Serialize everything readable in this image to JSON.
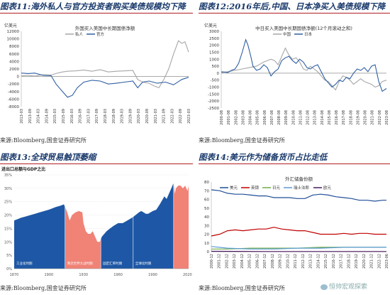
{
  "figures": [
    {
      "fig_label": "图表11:",
      "fig_title": "海外私人与官方投资者购买美债规模均下降",
      "source": "来源:Bloomberg,国金证券研究所"
    },
    {
      "fig_label": "图表12:",
      "fig_title": "2016年后,中国、日本净买入美债规模下降",
      "source": "来源:Bloomberg,国金证券研究所"
    },
    {
      "fig_label": "图表13:",
      "fig_title": "全球贸易触顶萎缩",
      "source": "来源:Bloomberg,国金证券研究所"
    },
    {
      "fig_label": "图表14:",
      "fig_title": "美元作为储备货币占比走低",
      "source": "来源:Bloomberg,国金证券研究所"
    }
  ],
  "watermark": "恒帅宏观探索",
  "chart_data": [
    {
      "type": "line",
      "unit": "亿美元",
      "title": "外国买入美国中长期国债净额",
      "ylim": [
        -8000,
        12000
      ],
      "yticks": [
        12000,
        10000,
        8000,
        6000,
        4000,
        2000,
        0,
        -2000,
        -4000,
        -6000,
        -8000
      ],
      "xlim": [
        2013.17,
        2023.42
      ],
      "xticks": [
        "2013-03",
        "2013-09",
        "2014-03",
        "2014-09",
        "2015-03",
        "2015-09",
        "2016-03",
        "2016-09",
        "2017-03",
        "2017-09",
        "2018-03",
        "2018-09",
        "2019-03",
        "2019-09",
        "2020-03",
        "2020-09",
        "2021-03",
        "2021-09",
        "2022-03",
        "2022-09",
        "2023-03"
      ],
      "series": [
        {
          "name": "私人",
          "color": "#a6a6a6",
          "x": [
            2013.17,
            2013.6,
            2014.0,
            2014.5,
            2015.0,
            2015.3,
            2015.7,
            2016.0,
            2016.5,
            2017.0,
            2017.5,
            2018.0,
            2018.5,
            2019.0,
            2019.5,
            2020.0,
            2020.3,
            2020.6,
            2021.0,
            2021.3,
            2021.6,
            2021.9,
            2022.2,
            2022.5,
            2022.8,
            2023.0,
            2023.2,
            2023.42
          ],
          "y": [
            200,
            300,
            100,
            500,
            400,
            800,
            1200,
            1400,
            1500,
            1700,
            1400,
            1800,
            1200,
            1400,
            1500,
            1600,
            -800,
            -1500,
            -1800,
            -2500,
            -3000,
            -800,
            2000,
            6000,
            9500,
            8800,
            9200,
            6500
          ]
        },
        {
          "name": "官方",
          "color": "#2e5fa3",
          "x": [
            2013.17,
            2013.6,
            2014.0,
            2014.5,
            2015.0,
            2015.3,
            2015.6,
            2016.0,
            2016.3,
            2016.6,
            2017.0,
            2017.5,
            2018.0,
            2018.5,
            2019.0,
            2019.5,
            2020.0,
            2020.3,
            2020.6,
            2021.0,
            2021.5,
            2022.0,
            2022.5,
            2023.0,
            2023.42
          ],
          "y": [
            900,
            800,
            900,
            300,
            200,
            -2000,
            -3500,
            -5500,
            -5000,
            -3000,
            -1500,
            -1000,
            -1200,
            -2000,
            -1800,
            -1500,
            -1200,
            -3000,
            -1500,
            -1200,
            -1800,
            -1500,
            -2200,
            -800,
            -200
          ]
        }
      ]
    },
    {
      "type": "line",
      "unit": "亿美元",
      "title": "中日买入美国中长期国债净额(12个月滚动之和)",
      "ylim": [
        -2500,
        3000
      ],
      "yticks": [
        3000,
        2500,
        2000,
        1500,
        1000,
        500,
        0,
        -500,
        -1000,
        -1500,
        -2000,
        -2500
      ],
      "xlim": [
        2000.58,
        2023.58
      ],
      "xticks": [
        "2000-08",
        "2001-08",
        "2002-08",
        "2003-08",
        "2004-08",
        "2005-08",
        "2006-08",
        "2007-08",
        "2008-08",
        "2009-08",
        "2010-08",
        "2011-08",
        "2012-08",
        "2013-08",
        "2014-08",
        "2015-08",
        "2016-08",
        "2017-08",
        "2018-08",
        "2019-08",
        "2020-08",
        "2021-08",
        "2022-08",
        "2023-08"
      ],
      "series": [
        {
          "name": "中国",
          "color": "#a6a6a6",
          "x": [
            2000.6,
            2001.5,
            2002.5,
            2003.5,
            2004.5,
            2005.5,
            2006.5,
            2007.5,
            2008.0,
            2008.5,
            2009.0,
            2009.5,
            2010.0,
            2010.5,
            2011.0,
            2011.5,
            2012.0,
            2012.5,
            2013.0,
            2013.5,
            2014.0,
            2014.5,
            2015.0,
            2015.5,
            2016.0,
            2016.5,
            2017.0,
            2017.5,
            2018.0,
            2018.5,
            2019.0,
            2019.5,
            2020.0,
            2020.5,
            2021.0,
            2021.5,
            2022.0,
            2022.5,
            2023.0,
            2023.58
          ],
          "y": [
            50,
            100,
            200,
            300,
            400,
            500,
            800,
            1000,
            900,
            600,
            1200,
            1800,
            1300,
            1000,
            1100,
            800,
            300,
            200,
            500,
            300,
            100,
            -200,
            -500,
            -600,
            -900,
            -1200,
            -600,
            -200,
            -300,
            -500,
            -800,
            -600,
            -400,
            -600,
            -700,
            -800,
            -1000,
            -900,
            -600,
            -500
          ]
        },
        {
          "name": "日本",
          "color": "#2e5fa3",
          "x": [
            2000.6,
            2001.5,
            2002.0,
            2002.5,
            2003.0,
            2003.5,
            2004.0,
            2004.3,
            2004.7,
            2005.0,
            2005.5,
            2006.0,
            2006.5,
            2007.0,
            2007.5,
            2008.0,
            2008.5,
            2009.0,
            2009.5,
            2010.0,
            2010.5,
            2011.0,
            2011.5,
            2012.0,
            2012.5,
            2013.0,
            2013.5,
            2014.0,
            2014.5,
            2015.0,
            2015.5,
            2016.0,
            2016.5,
            2017.0,
            2017.5,
            2018.0,
            2018.5,
            2019.0,
            2019.5,
            2020.0,
            2020.5,
            2021.0,
            2021.5,
            2022.0,
            2022.5,
            2023.0,
            2023.58
          ],
          "y": [
            100,
            50,
            200,
            300,
            700,
            1500,
            2400,
            2000,
            1200,
            500,
            200,
            300,
            600,
            400,
            -200,
            100,
            300,
            900,
            1100,
            1200,
            900,
            700,
            1000,
            800,
            400,
            300,
            500,
            600,
            100,
            -400,
            -700,
            -1000,
            -800,
            -500,
            -600,
            -300,
            -400,
            0,
            300,
            200,
            400,
            100,
            500,
            600,
            -600,
            -1300,
            -1100
          ]
        }
      ]
    },
    {
      "type": "area",
      "title": "进出口总额与GDP之比",
      "ylim": [
        0,
        35
      ],
      "yticks": [
        "35%",
        "30%",
        "25%",
        "20%",
        "15%",
        "10%",
        "5%",
        "0%"
      ],
      "xlim": [
        1870,
        2021
      ],
      "xticks": [
        "1870",
        "1900",
        "1930",
        "1960",
        "1990",
        "2020"
      ],
      "x": [
        1870,
        1873,
        1876,
        1880,
        1884,
        1888,
        1892,
        1896,
        1900,
        1903,
        1906,
        1910,
        1913,
        1916,
        1918,
        1920,
        1923,
        1926,
        1929,
        1930,
        1932,
        1934,
        1936,
        1938,
        1940,
        1942,
        1944,
        1946,
        1948,
        1950,
        1953,
        1956,
        1960,
        1964,
        1968,
        1972,
        1975,
        1978,
        1980,
        1982,
        1984,
        1986,
        1988,
        1990,
        1993,
        1996,
        2000,
        2002,
        2004,
        2006,
        2008,
        2009,
        2010,
        2012,
        2014,
        2016,
        2018,
        2020,
        2021
      ],
      "values": [
        18,
        18.5,
        19,
        19.5,
        20,
        20.5,
        21,
        21.5,
        22,
        22.5,
        23,
        23.5,
        24,
        21,
        18,
        20,
        21,
        21.5,
        21,
        17,
        14,
        13,
        13,
        14,
        12,
        10,
        10,
        12,
        13,
        14,
        15,
        16,
        17,
        17,
        18,
        19,
        20,
        21,
        21.5,
        21,
        20.5,
        20.5,
        21,
        21.5,
        22,
        24,
        27,
        26,
        28,
        30,
        32,
        28,
        30,
        31,
        31,
        30,
        31,
        29,
        31
      ],
      "eras": [
        {
          "label": "工业化时期",
          "from": 1870,
          "to": 1914,
          "color": "#1e57a5"
        },
        {
          "label": "两次世界大战时期",
          "from": 1914,
          "to": 1945,
          "color": "#f08276"
        },
        {
          "label": "固定汇率时期",
          "from": 1945,
          "to": 1973,
          "color": "#1e57a5"
        },
        {
          "label": "全球化时期",
          "from": 1973,
          "to": 2008,
          "color": "#1e57a5"
        },
        {
          "label": "",
          "from": 2008,
          "to": 2021,
          "color": "#f08276"
        }
      ]
    },
    {
      "type": "line",
      "unit": "%",
      "title": "外汇储备份额",
      "ylim": [
        0,
        80
      ],
      "yticks": [
        80,
        70,
        60,
        50,
        40,
        30,
        20,
        10,
        0
      ],
      "xlim": [
        2000.92,
        2023.5
      ],
      "xticks": [
        "2000-12",
        "2001-12",
        "2002-12",
        "2003-12",
        "2004-12",
        "2005-12",
        "2006-12",
        "2007-12",
        "2008-12",
        "2009-12",
        "2010-12",
        "2011-12",
        "2012-12",
        "2013-12",
        "2014-12",
        "2015-12",
        "2016-12",
        "2017-12",
        "2018-12",
        "2019-12",
        "2020-12",
        "2021-12",
        "2022-12",
        "2023-06"
      ],
      "series": [
        {
          "name": "美元",
          "color": "#1f4e96",
          "x": [
            2000.92,
            2002,
            2003,
            2004,
            2005,
            2006,
            2007,
            2008,
            2009,
            2010,
            2011,
            2012,
            2013,
            2014,
            2015,
            2016,
            2017,
            2018,
            2019,
            2020,
            2021,
            2022,
            2023,
            2023.5
          ],
          "y": [
            71,
            70,
            67,
            66,
            66,
            65,
            64,
            64,
            62,
            62,
            62,
            61,
            61,
            65,
            66,
            65,
            63,
            62,
            61,
            59,
            59,
            58,
            59,
            59
          ]
        },
        {
          "name": "英镑",
          "color": "#c00000",
          "x": [
            2000.92,
            2002,
            2003,
            2004,
            2005,
            2006,
            2007,
            2008,
            2009,
            2010,
            2011,
            2012,
            2013,
            2014,
            2015,
            2016,
            2017,
            2018,
            2019,
            2020,
            2021,
            2022,
            2023,
            2023.5
          ],
          "y": [
            18,
            20,
            24,
            25,
            24,
            25,
            26,
            26,
            28,
            26,
            25,
            24,
            24,
            22,
            20,
            20,
            20,
            21,
            20,
            21,
            21,
            20,
            20,
            20
          ]
        },
        {
          "name": "日元",
          "color": "#70ad47",
          "x": [
            2000.92,
            2003,
            2006,
            2009,
            2012,
            2015,
            2018,
            2021,
            2023.5
          ],
          "y": [
            3,
            3,
            4,
            4,
            4,
            5,
            5,
            5,
            5
          ]
        },
        {
          "name": "瑞士法郎",
          "color": "#5b9bd5",
          "x": [
            2000.92,
            2003,
            2006,
            2009,
            2012,
            2015,
            2018,
            2021,
            2023.5
          ],
          "y": [
            6,
            4,
            3,
            3,
            4,
            4,
            5,
            5,
            5
          ]
        },
        {
          "name": "欧元",
          "color": "#4a1a5e",
          "x": [
            2000.92,
            2004,
            2008,
            2012,
            2016,
            2020,
            2023.5
          ],
          "y": [
            0.4,
            0.3,
            0.2,
            0.2,
            0.2,
            0.2,
            0.2
          ]
        }
      ]
    }
  ]
}
